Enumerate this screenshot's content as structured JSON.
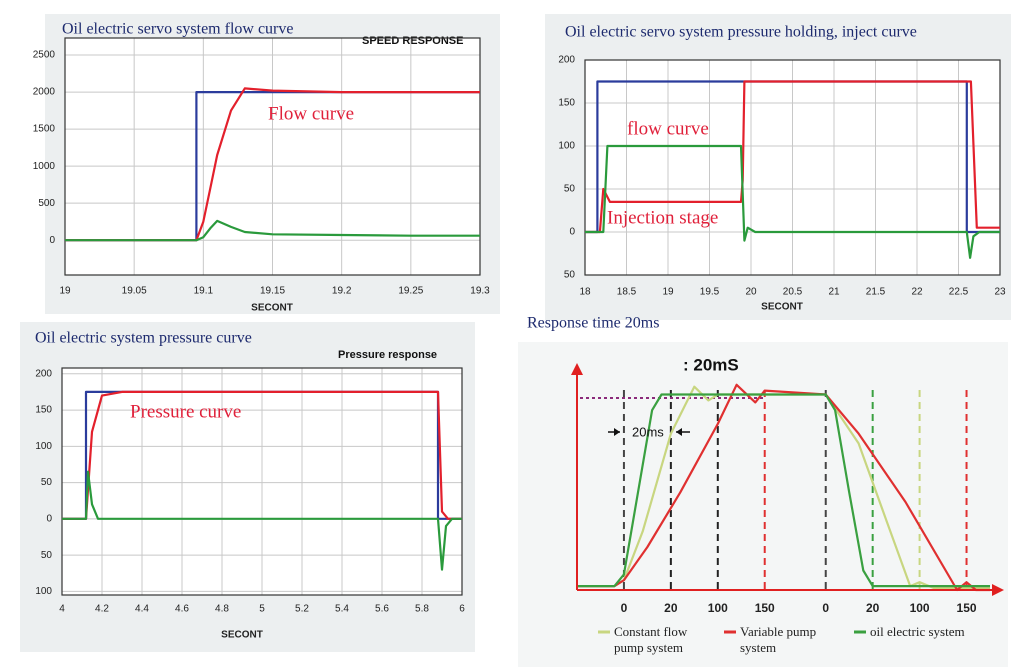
{
  "chart_data": [
    {
      "type": "line",
      "title": "Oil electric servo system flow curve",
      "subtitle": "SPEED RESPONSE",
      "x_label": "SECONT",
      "annotations": [
        "Flow curve"
      ],
      "xlim": [
        19,
        19.3
      ],
      "xticks": [
        19,
        19.05,
        19.1,
        19.15,
        19.2,
        19.25,
        19.3
      ],
      "ylim": [
        -470,
        2730
      ],
      "yticks": [
        2500,
        2000,
        1500,
        1000,
        500,
        0
      ],
      "grid": true,
      "series": [
        {
          "color": "#2b3c9c",
          "x": [
            19,
            19.095,
            19.095,
            19.3
          ],
          "values": [
            0,
            0,
            2000,
            2000
          ]
        },
        {
          "color": "#e3202c",
          "x": [
            19,
            19.095,
            19.1,
            19.105,
            19.11,
            19.12,
            19.13,
            19.15,
            19.2,
            19.25,
            19.3
          ],
          "values": [
            0,
            0,
            250,
            700,
            1150,
            1750,
            2050,
            2020,
            2000,
            2000,
            2000
          ]
        },
        {
          "color": "#2a9a3c",
          "x": [
            19,
            19.095,
            19.1,
            19.105,
            19.11,
            19.12,
            19.13,
            19.15,
            19.2,
            19.25,
            19.3
          ],
          "values": [
            0,
            0,
            40,
            160,
            260,
            180,
            110,
            80,
            70,
            60,
            60
          ]
        }
      ]
    },
    {
      "type": "line",
      "title": "Oil electric servo system pressure holding, inject curve",
      "x_label": "SECONT",
      "annotations": [
        "flow curve",
        "Injection stage"
      ],
      "xlim": [
        18,
        23
      ],
      "xticks": [
        18,
        18.5,
        19,
        19.5,
        20,
        20.5,
        21,
        21.5,
        22,
        22.5,
        23
      ],
      "ylim": [
        -50,
        200
      ],
      "yticks": [
        200,
        150,
        100,
        50,
        0,
        {
          "value": -50,
          "label": "50"
        }
      ],
      "grid": true,
      "series": [
        {
          "color": "#2b3c9c",
          "x": [
            18,
            18.15,
            18.15,
            22.6,
            22.6,
            23
          ],
          "values": [
            0,
            0,
            175,
            175,
            0,
            0
          ]
        },
        {
          "color": "#e3202c",
          "x": [
            18,
            18.18,
            18.22,
            18.3,
            19.88,
            19.9,
            19.92,
            22.65,
            22.72,
            23
          ],
          "values": [
            0,
            0,
            50,
            35,
            35,
            60,
            175,
            175,
            5,
            5
          ]
        },
        {
          "color": "#2a9a3c",
          "x": [
            18,
            18.22,
            18.27,
            19.88,
            19.92,
            19.96,
            20.05,
            22.6,
            22.64,
            22.68,
            22.75,
            23
          ],
          "values": [
            0,
            0,
            100,
            100,
            -10,
            5,
            0,
            0,
            -30,
            -5,
            0,
            0
          ]
        }
      ]
    },
    {
      "type": "line",
      "title": "Oil electric system pressure curve",
      "subtitle": "Pressure response",
      "x_label": "SECONT",
      "annotations": [
        "Pressure curve"
      ],
      "xlim": [
        4,
        6
      ],
      "xticks": [
        4,
        4.2,
        4.4,
        4.6,
        4.8,
        5,
        5.2,
        5.4,
        5.6,
        5.8,
        6
      ],
      "ylim": [
        -105,
        208
      ],
      "yticks": [
        200,
        150,
        100,
        50,
        0,
        {
          "value": -50,
          "label": "50"
        },
        {
          "value": -100,
          "label": "100"
        }
      ],
      "grid": true,
      "series": [
        {
          "color": "#2b3c9c",
          "x": [
            4,
            4.12,
            4.12,
            5.88,
            5.88,
            6
          ],
          "values": [
            0,
            0,
            175,
            175,
            0,
            0
          ]
        },
        {
          "color": "#e3202c",
          "x": [
            4,
            4.12,
            4.15,
            4.2,
            4.3,
            5.88,
            5.9,
            5.93,
            6
          ],
          "values": [
            0,
            0,
            120,
            170,
            175,
            175,
            10,
            0,
            0
          ]
        },
        {
          "color": "#2a9a3c",
          "x": [
            4,
            4.12,
            4.13,
            4.15,
            4.18,
            5.88,
            5.9,
            5.92,
            5.95,
            6
          ],
          "values": [
            0,
            0,
            65,
            20,
            0,
            0,
            -70,
            -10,
            0,
            0
          ]
        }
      ]
    },
    {
      "type": "line",
      "title": "Response time 20ms",
      "annotations": [
        ": 20mS",
        "20ms"
      ],
      "xlim": [
        -10,
        78
      ],
      "ylim": [
        0,
        110
      ],
      "xticks": [
        {
          "value": 0,
          "label": "0"
        },
        {
          "value": 10,
          "label": "20"
        },
        {
          "value": 20,
          "label": "100"
        },
        {
          "value": 30,
          "label": "150"
        },
        {
          "value": 43,
          "label": "0"
        },
        {
          "value": 53,
          "label": "20"
        },
        {
          "value": 63,
          "label": "100"
        },
        {
          "value": 73,
          "label": "150"
        }
      ],
      "xtick_colors": [
        "#444",
        "#222",
        "#222",
        "#e03030",
        "#444",
        "#3aa040",
        "#c8d680",
        "#e03030"
      ],
      "series": [
        {
          "name": "Constant flow pump system",
          "color": "#c8d680",
          "x": [
            -10,
            -2,
            0,
            4,
            10,
            15,
            18,
            20,
            43,
            50,
            56,
            61,
            63,
            66,
            78
          ],
          "values": [
            2,
            2,
            5,
            30,
            80,
            104,
            97,
            100,
            100,
            75,
            35,
            2,
            4,
            1,
            1
          ]
        },
        {
          "name": "Variable pump system",
          "color": "#e03030",
          "x": [
            -10,
            -2,
            0,
            5,
            12,
            20,
            24,
            28,
            30,
            43,
            50,
            60,
            71,
            73,
            75,
            78
          ],
          "values": [
            2,
            2,
            5,
            22,
            50,
            85,
            105,
            96,
            102,
            100,
            80,
            45,
            0,
            4,
            0,
            0
          ]
        },
        {
          "name": "oil electric system",
          "color": "#3aa040",
          "x": [
            -10,
            -2,
            0,
            3,
            6,
            8,
            43,
            45,
            48,
            51,
            53,
            78
          ],
          "values": [
            2,
            2,
            8,
            50,
            92,
            100,
            100,
            92,
            50,
            10,
            2,
            2
          ]
        }
      ]
    }
  ]
}
